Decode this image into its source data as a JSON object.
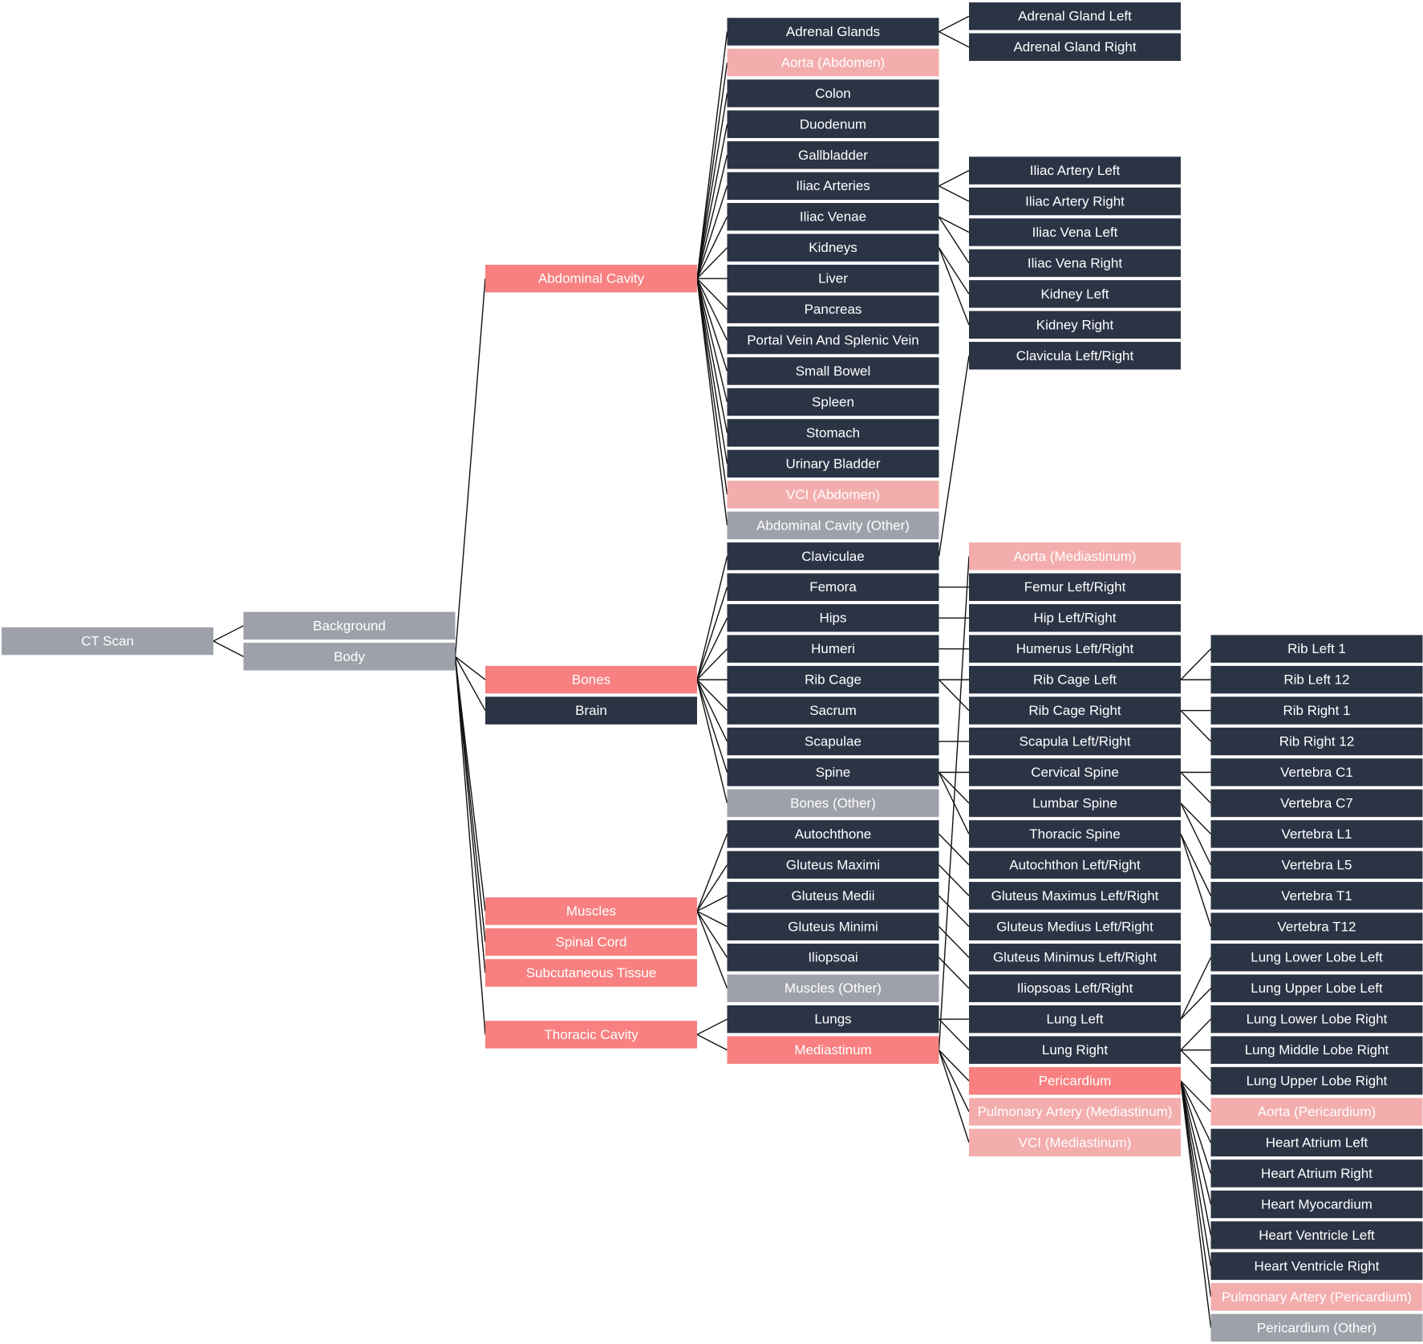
{
  "tree": {
    "label": "CT Scan",
    "color": "#9ea1a9",
    "children": [
      {
        "label": "Background",
        "color": "#9ea1a9"
      },
      {
        "label": "Body",
        "color": "#9ea1a9",
        "children": [
          {
            "label": "Abdominal Cavity",
            "color": "#f88080",
            "children": [
              {
                "label": "Adrenal Glands",
                "color": "#2b3445",
                "children": [
                  {
                    "label": "Adrenal Gland Left",
                    "color": "#2b3445"
                  },
                  {
                    "label": "Adrenal Gland Right",
                    "color": "#2b3445"
                  }
                ]
              },
              {
                "label": "Aorta (Abdomen)",
                "color": "#f3adad"
              },
              {
                "label": "Colon",
                "color": "#2b3445"
              },
              {
                "label": "Duodenum",
                "color": "#2b3445"
              },
              {
                "label": "Gallbladder",
                "color": "#2b3445"
              },
              {
                "label": "Iliac Arteries",
                "color": "#2b3445",
                "children": [
                  {
                    "label": "Iliac Artery Left",
                    "color": "#2b3445"
                  },
                  {
                    "label": "Iliac Artery Right",
                    "color": "#2b3445"
                  }
                ]
              },
              {
                "label": "Iliac Venae",
                "color": "#2b3445",
                "children": [
                  {
                    "label": "Iliac Vena Left",
                    "color": "#2b3445"
                  },
                  {
                    "label": "Iliac Vena Right",
                    "color": "#2b3445"
                  }
                ]
              },
              {
                "label": "Kidneys",
                "color": "#2b3445",
                "children": [
                  {
                    "label": "Kidney Left",
                    "color": "#2b3445"
                  },
                  {
                    "label": "Kidney Right",
                    "color": "#2b3445"
                  }
                ]
              },
              {
                "label": "Liver",
                "color": "#2b3445"
              },
              {
                "label": "Pancreas",
                "color": "#2b3445"
              },
              {
                "label": "Portal Vein And Splenic Vein",
                "color": "#2b3445"
              },
              {
                "label": "Small Bowel",
                "color": "#2b3445"
              },
              {
                "label": "Spleen",
                "color": "#2b3445"
              },
              {
                "label": "Stomach",
                "color": "#2b3445"
              },
              {
                "label": "Urinary Bladder",
                "color": "#2b3445"
              },
              {
                "label": "VCI (Abdomen)",
                "color": "#f3adad"
              },
              {
                "label": "Abdominal Cavity (Other)",
                "color": "#9ea1a9"
              }
            ]
          },
          {
            "label": "Bones",
            "color": "#f88080",
            "children": [
              {
                "label": "Claviculae",
                "color": "#2b3445",
                "children": [
                  {
                    "label": "Clavicula Left/Right",
                    "color": "#2b3445"
                  }
                ]
              },
              {
                "label": "Femora",
                "color": "#2b3445",
                "children": [
                  {
                    "label": "Femur Left/Right",
                    "color": "#2b3445"
                  }
                ]
              },
              {
                "label": "Hips",
                "color": "#2b3445",
                "children": [
                  {
                    "label": "Hip Left/Right",
                    "color": "#2b3445"
                  }
                ]
              },
              {
                "label": "Humeri",
                "color": "#2b3445",
                "children": [
                  {
                    "label": "Humerus Left/Right",
                    "color": "#2b3445"
                  }
                ]
              },
              {
                "label": "Rib Cage",
                "color": "#2b3445",
                "children": [
                  {
                    "label": "Rib Cage Left",
                    "color": "#2b3445",
                    "children": [
                      {
                        "label": "Rib Left 1",
                        "color": "#2b3445"
                      },
                      {
                        "label": "Rib Left 12",
                        "color": "#2b3445"
                      }
                    ]
                  },
                  {
                    "label": "Rib Cage Right",
                    "color": "#2b3445",
                    "children": [
                      {
                        "label": "Rib Right 1",
                        "color": "#2b3445"
                      },
                      {
                        "label": "Rib Right 12",
                        "color": "#2b3445"
                      }
                    ]
                  }
                ]
              },
              {
                "label": "Sacrum",
                "color": "#2b3445"
              },
              {
                "label": "Scapulae",
                "color": "#2b3445",
                "children": [
                  {
                    "label": "Scapula Left/Right",
                    "color": "#2b3445"
                  }
                ]
              },
              {
                "label": "Spine",
                "color": "#2b3445",
                "children": [
                  {
                    "label": "Cervical Spine",
                    "color": "#2b3445",
                    "children": [
                      {
                        "label": "Vertebra C1",
                        "color": "#2b3445"
                      },
                      {
                        "label": "Vertebra C7",
                        "color": "#2b3445"
                      }
                    ]
                  },
                  {
                    "label": "Lumbar Spine",
                    "color": "#2b3445",
                    "children": [
                      {
                        "label": "Vertebra L1",
                        "color": "#2b3445"
                      },
                      {
                        "label": "Vertebra L5",
                        "color": "#2b3445"
                      }
                    ]
                  },
                  {
                    "label": "Thoracic Spine",
                    "color": "#2b3445",
                    "children": [
                      {
                        "label": "Vertebra T1",
                        "color": "#2b3445"
                      },
                      {
                        "label": "Vertebra T12",
                        "color": "#2b3445"
                      }
                    ]
                  }
                ]
              },
              {
                "label": "Bones (Other)",
                "color": "#9ea1a9"
              }
            ]
          },
          {
            "label": "Brain",
            "color": "#2b3445"
          },
          {
            "label": "Muscles",
            "color": "#f88080",
            "children": [
              {
                "label": "Autochthone",
                "color": "#2b3445",
                "children": [
                  {
                    "label": "Autochthon Left/Right",
                    "color": "#2b3445"
                  }
                ]
              },
              {
                "label": "Gluteus Maximi",
                "color": "#2b3445",
                "children": [
                  {
                    "label": "Gluteus Maximus Left/Right",
                    "color": "#2b3445"
                  }
                ]
              },
              {
                "label": "Gluteus Medii",
                "color": "#2b3445",
                "children": [
                  {
                    "label": "Gluteus Medius Left/Right",
                    "color": "#2b3445"
                  }
                ]
              },
              {
                "label": "Gluteus Minimi",
                "color": "#2b3445",
                "children": [
                  {
                    "label": "Gluteus Minimus Left/Right",
                    "color": "#2b3445"
                  }
                ]
              },
              {
                "label": "Iliopsoai",
                "color": "#2b3445",
                "children": [
                  {
                    "label": "Iliopsoas Left/Right",
                    "color": "#2b3445"
                  }
                ]
              },
              {
                "label": "Muscles (Other)",
                "color": "#9ea1a9"
              }
            ]
          },
          {
            "label": "Spinal Cord",
            "color": "#f88080"
          },
          {
            "label": "Subcutaneous Tissue",
            "color": "#f88080"
          },
          {
            "label": "Thoracic Cavity",
            "color": "#f88080",
            "children": [
              {
                "label": "Lungs",
                "color": "#2b3445",
                "children": [
                  {
                    "label": "Lung Left",
                    "color": "#2b3445",
                    "children": [
                      {
                        "label": "Lung Lower Lobe Left",
                        "color": "#2b3445"
                      },
                      {
                        "label": "Lung Upper Lobe Left",
                        "color": "#2b3445"
                      }
                    ]
                  },
                  {
                    "label": "Lung Right",
                    "color": "#2b3445",
                    "children": [
                      {
                        "label": "Lung Lower Lobe Right",
                        "color": "#2b3445"
                      },
                      {
                        "label": "Lung Middle Lobe Right",
                        "color": "#2b3445"
                      },
                      {
                        "label": "Lung Upper Lobe Right",
                        "color": "#2b3445"
                      }
                    ]
                  }
                ]
              },
              {
                "label": "Mediastinum",
                "color": "#f88080",
                "children": [
                  {
                    "label": "Aorta (Mediastinum)",
                    "color": "#f3adad"
                  },
                  {
                    "label": "Pericardium",
                    "color": "#f88080",
                    "children": [
                      {
                        "label": "Aorta (Pericardium)",
                        "color": "#f3adad"
                      },
                      {
                        "label": "Heart Atrium Left",
                        "color": "#2b3445"
                      },
                      {
                        "label": "Heart Atrium Right",
                        "color": "#2b3445"
                      },
                      {
                        "label": "Heart Myocardium",
                        "color": "#2b3445"
                      },
                      {
                        "label": "Heart Ventricle Left",
                        "color": "#2b3445"
                      },
                      {
                        "label": "Heart Ventricle Right",
                        "color": "#2b3445"
                      },
                      {
                        "label": "Pulmonary Artery (Pericardium)",
                        "color": "#f3adad"
                      },
                      {
                        "label": "Pericardium (Other)",
                        "color": "#9ea1a9"
                      }
                    ]
                  },
                  {
                    "label": "Pulmonary Artery (Mediastinum)",
                    "color": "#f3adad"
                  },
                  {
                    "label": "VCI (Mediastinum)",
                    "color": "#f3adad"
                  }
                ]
              }
            ]
          }
        ]
      }
    ]
  }
}
